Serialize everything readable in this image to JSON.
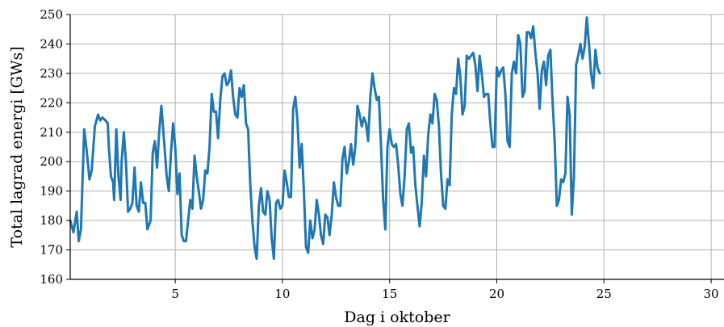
{
  "chart_data": {
    "type": "line",
    "title": "",
    "xlabel": "Dag i oktober",
    "ylabel": "Total lagrad energi [GWs]",
    "xlim": [
      0.1,
      30.6
    ],
    "ylim": [
      160,
      250
    ],
    "x_ticks": [
      5,
      10,
      15,
      20,
      25,
      30
    ],
    "y_ticks": [
      160,
      170,
      180,
      190,
      200,
      210,
      220,
      230,
      240,
      250
    ],
    "grid": true,
    "legend": "none",
    "series": [
      {
        "color": "#1f77b4",
        "points": [
          [
            0.1,
            180
          ],
          [
            0.25,
            176
          ],
          [
            0.4,
            183
          ],
          [
            0.5,
            173
          ],
          [
            0.6,
            177
          ],
          [
            0.75,
            211
          ],
          [
            0.85,
            205
          ],
          [
            1.0,
            194
          ],
          [
            1.1,
            197
          ],
          [
            1.25,
            212
          ],
          [
            1.4,
            216
          ],
          [
            1.5,
            214
          ],
          [
            1.6,
            215
          ],
          [
            1.75,
            214
          ],
          [
            1.85,
            213
          ],
          [
            1.9,
            205
          ],
          [
            2.0,
            195
          ],
          [
            2.1,
            193
          ],
          [
            2.15,
            187
          ],
          [
            2.25,
            211
          ],
          [
            2.35,
            195
          ],
          [
            2.45,
            187
          ],
          [
            2.5,
            200
          ],
          [
            2.6,
            210
          ],
          [
            2.7,
            200
          ],
          [
            2.8,
            183
          ],
          [
            2.9,
            184
          ],
          [
            3.0,
            186
          ],
          [
            3.1,
            198
          ],
          [
            3.2,
            185
          ],
          [
            3.3,
            183
          ],
          [
            3.4,
            193
          ],
          [
            3.5,
            186
          ],
          [
            3.6,
            186
          ],
          [
            3.7,
            177
          ],
          [
            3.8,
            179
          ],
          [
            3.85,
            180
          ],
          [
            3.95,
            203
          ],
          [
            4.05,
            207
          ],
          [
            4.15,
            198
          ],
          [
            4.25,
            210
          ],
          [
            4.35,
            219
          ],
          [
            4.45,
            210
          ],
          [
            4.6,
            195
          ],
          [
            4.7,
            190
          ],
          [
            4.8,
            203
          ],
          [
            4.9,
            213
          ],
          [
            5.0,
            205
          ],
          [
            5.1,
            189
          ],
          [
            5.2,
            196
          ],
          [
            5.3,
            175
          ],
          [
            5.4,
            173
          ],
          [
            5.5,
            173
          ],
          [
            5.6,
            180
          ],
          [
            5.7,
            187
          ],
          [
            5.8,
            184
          ],
          [
            5.9,
            202
          ],
          [
            6.0,
            195
          ],
          [
            6.1,
            190
          ],
          [
            6.2,
            184
          ],
          [
            6.3,
            187
          ],
          [
            6.4,
            197
          ],
          [
            6.5,
            196
          ],
          [
            6.6,
            205
          ],
          [
            6.7,
            223
          ],
          [
            6.8,
            217
          ],
          [
            6.9,
            217
          ],
          [
            7.0,
            208
          ],
          [
            7.1,
            221
          ],
          [
            7.2,
            229
          ],
          [
            7.3,
            230
          ],
          [
            7.4,
            226
          ],
          [
            7.5,
            227
          ],
          [
            7.6,
            231
          ],
          [
            7.7,
            222
          ],
          [
            7.8,
            216
          ],
          [
            7.9,
            215
          ],
          [
            8.0,
            225
          ],
          [
            8.1,
            222
          ],
          [
            8.2,
            226
          ],
          [
            8.3,
            213
          ],
          [
            8.4,
            211
          ],
          [
            8.5,
            192
          ],
          [
            8.6,
            180
          ],
          [
            8.7,
            171
          ],
          [
            8.8,
            167
          ],
          [
            8.9,
            185
          ],
          [
            9.0,
            191
          ],
          [
            9.1,
            183
          ],
          [
            9.2,
            182
          ],
          [
            9.3,
            190
          ],
          [
            9.4,
            187
          ],
          [
            9.5,
            174
          ],
          [
            9.6,
            167
          ],
          [
            9.7,
            186
          ],
          [
            9.8,
            187
          ],
          [
            9.9,
            184
          ],
          [
            10.0,
            185
          ],
          [
            10.1,
            197
          ],
          [
            10.2,
            193
          ],
          [
            10.3,
            188
          ],
          [
            10.4,
            188
          ],
          [
            10.5,
            218
          ],
          [
            10.6,
            222
          ],
          [
            10.7,
            214
          ],
          [
            10.8,
            198
          ],
          [
            10.9,
            206
          ],
          [
            11.0,
            190
          ],
          [
            11.1,
            171
          ],
          [
            11.2,
            169
          ],
          [
            11.3,
            180
          ],
          [
            11.4,
            174
          ],
          [
            11.5,
            177
          ],
          [
            11.6,
            187
          ],
          [
            11.7,
            182
          ],
          [
            11.8,
            175
          ],
          [
            11.9,
            172
          ],
          [
            12.0,
            182
          ],
          [
            12.1,
            181
          ],
          [
            12.2,
            175
          ],
          [
            12.3,
            182
          ],
          [
            12.4,
            193
          ],
          [
            12.5,
            188
          ],
          [
            12.6,
            185
          ],
          [
            12.7,
            185
          ],
          [
            12.8,
            201
          ],
          [
            12.9,
            205
          ],
          [
            13.0,
            196
          ],
          [
            13.1,
            200
          ],
          [
            13.2,
            206
          ],
          [
            13.3,
            199
          ],
          [
            13.4,
            205
          ],
          [
            13.5,
            219
          ],
          [
            13.6,
            216
          ],
          [
            13.7,
            212
          ],
          [
            13.8,
            215
          ],
          [
            13.9,
            213
          ],
          [
            14.0,
            207
          ],
          [
            14.1,
            222
          ],
          [
            14.2,
            230
          ],
          [
            14.3,
            225
          ],
          [
            14.4,
            221
          ],
          [
            14.5,
            222
          ],
          [
            14.6,
            205
          ],
          [
            14.7,
            187
          ],
          [
            14.8,
            177
          ],
          [
            14.9,
            205
          ],
          [
            15.0,
            211
          ],
          [
            15.1,
            206
          ],
          [
            15.2,
            205
          ],
          [
            15.3,
            206
          ],
          [
            15.4,
            199
          ],
          [
            15.5,
            189
          ],
          [
            15.6,
            185
          ],
          [
            15.7,
            195
          ],
          [
            15.8,
            211
          ],
          [
            15.9,
            213
          ],
          [
            16.0,
            203
          ],
          [
            16.1,
            205
          ],
          [
            16.2,
            192
          ],
          [
            16.3,
            185
          ],
          [
            16.4,
            178
          ],
          [
            16.5,
            186
          ],
          [
            16.6,
            202
          ],
          [
            16.7,
            195
          ],
          [
            16.8,
            209
          ],
          [
            16.9,
            216
          ],
          [
            17.0,
            213
          ],
          [
            17.1,
            223
          ],
          [
            17.2,
            221
          ],
          [
            17.3,
            212
          ],
          [
            17.4,
            196
          ],
          [
            17.5,
            185
          ],
          [
            17.6,
            184
          ],
          [
            17.7,
            194
          ],
          [
            17.8,
            192
          ],
          [
            17.9,
            216
          ],
          [
            18.0,
            225
          ],
          [
            18.1,
            223
          ],
          [
            18.2,
            235
          ],
          [
            18.3,
            229
          ],
          [
            18.4,
            216
          ],
          [
            18.5,
            219
          ],
          [
            18.6,
            236
          ],
          [
            18.7,
            235
          ],
          [
            18.8,
            236
          ],
          [
            18.9,
            237
          ],
          [
            19.0,
            233
          ],
          [
            19.1,
            224
          ],
          [
            19.2,
            236
          ],
          [
            19.3,
            230
          ],
          [
            19.4,
            222
          ],
          [
            19.5,
            223
          ],
          [
            19.6,
            223
          ],
          [
            19.7,
            213
          ],
          [
            19.8,
            205
          ],
          [
            19.9,
            205
          ],
          [
            20.0,
            232
          ],
          [
            20.1,
            229
          ],
          [
            20.2,
            231
          ],
          [
            20.3,
            232
          ],
          [
            20.4,
            223
          ],
          [
            20.5,
            207
          ],
          [
            20.6,
            205
          ],
          [
            20.7,
            230
          ],
          [
            20.8,
            234
          ],
          [
            20.9,
            230
          ],
          [
            21.0,
            243
          ],
          [
            21.1,
            240
          ],
          [
            21.2,
            222
          ],
          [
            21.3,
            224
          ],
          [
            21.4,
            244
          ],
          [
            21.5,
            244
          ],
          [
            21.6,
            242
          ],
          [
            21.7,
            246
          ],
          [
            21.8,
            237
          ],
          [
            21.9,
            230
          ],
          [
            22.0,
            218
          ],
          [
            22.1,
            231
          ],
          [
            22.2,
            234
          ],
          [
            22.3,
            226
          ],
          [
            22.4,
            236
          ],
          [
            22.5,
            238
          ],
          [
            22.6,
            221
          ],
          [
            22.7,
            207
          ],
          [
            22.8,
            185
          ],
          [
            22.9,
            187
          ],
          [
            23.0,
            194
          ],
          [
            23.1,
            193
          ],
          [
            23.2,
            196
          ],
          [
            23.3,
            222
          ],
          [
            23.4,
            216
          ],
          [
            23.5,
            182
          ],
          [
            23.6,
            195
          ],
          [
            23.7,
            233
          ],
          [
            23.8,
            236
          ],
          [
            23.9,
            240
          ],
          [
            24.0,
            235
          ],
          [
            24.1,
            239
          ],
          [
            24.2,
            249
          ],
          [
            24.3,
            240
          ],
          [
            24.4,
            230
          ],
          [
            24.5,
            225
          ],
          [
            24.6,
            238
          ],
          [
            24.7,
            232
          ],
          [
            24.8,
            230
          ]
        ]
      }
    ]
  }
}
